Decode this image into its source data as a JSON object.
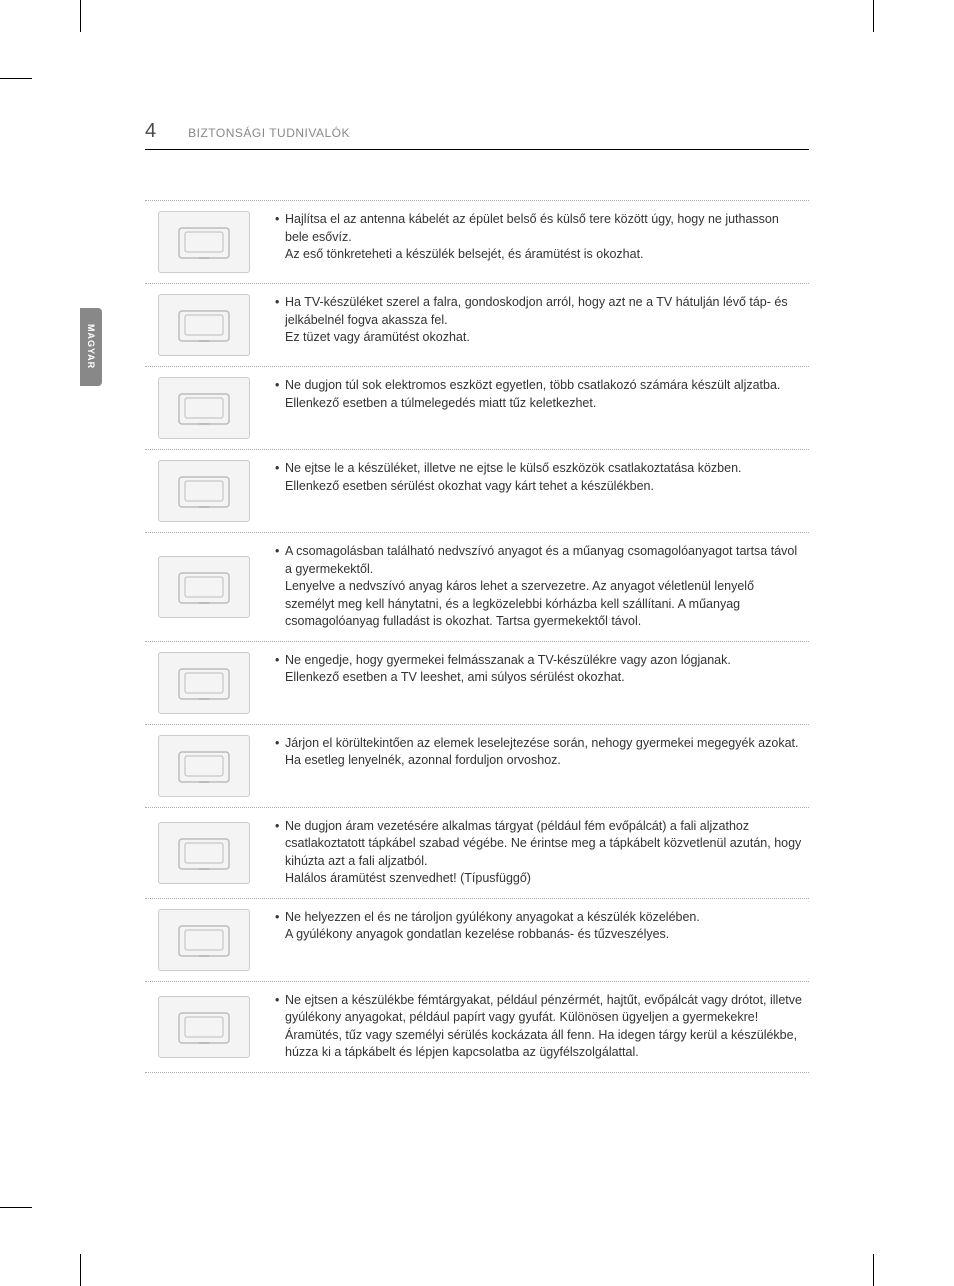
{
  "page_number": "4",
  "section_title": "BIZTONSÁGI TUDNIVALÓK",
  "language_tab": "MAGYAR",
  "colors": {
    "text": "#333333",
    "muted": "#888888",
    "tab_bg": "#888888",
    "tab_text": "#ffffff",
    "border_dotted": "#aaaaaa"
  },
  "rows": [
    {
      "icon": "antenna-rain",
      "main": "Hajlítsa el az antenna kábelét az épület belső és külső tere között úgy, hogy ne juthasson bele esővíz.",
      "sub": "Az eső tönkreteheti a készülék belsejét, és áramütést is okozhat."
    },
    {
      "icon": "wall-mount",
      "main": "Ha TV-készüléket szerel a falra, gondoskodjon arról, hogy azt ne a TV hátulján lévő táp- és jelkábelnél fogva akassza fel.",
      "sub": "Ez tüzet vagy áramütést okozhat."
    },
    {
      "icon": "power-strip",
      "main": "Ne dugjon túl sok elektromos eszközt egyetlen, több csatlakozó számára készült aljzatba.",
      "sub": "Ellenkező esetben a túlmelegedés miatt tűz keletkezhet."
    },
    {
      "icon": "drop-tv",
      "main": "Ne ejtse le a készüléket, illetve ne ejtse le külső eszközök csatlakoztatása közben.",
      "sub": "Ellenkező esetben sérülést okozhat vagy kárt tehet a készülékben."
    },
    {
      "icon": "packaging",
      "main": "A csomagolásban található nedvszívó anyagot és a műanyag csomagolóanyagot tartsa távol a gyermekektől.",
      "sub": "Lenyelve a nedvszívó anyag káros lehet a szervezetre. Az anyagot véletlenül lenyelő személyt meg kell hánytatni, és a legközelebbi kórházba kell szállítani. A műanyag csomagolóanyag fulladást is okozhat. Tartsa gyermekektől távol."
    },
    {
      "icon": "child-climb",
      "main": "Ne engedje, hogy gyermekei felmásszanak a TV-készülékre vagy azon lógjanak.",
      "sub": "Ellenkező esetben a TV leeshet, ami súlyos sérülést okozhat."
    },
    {
      "icon": "batteries",
      "main": "Járjon el körültekintően az elemek leselejtezése során, nehogy gyermekei megegyék azokat.",
      "sub": "Ha esetleg lenyelnék, azonnal forduljon orvoshoz."
    },
    {
      "icon": "metal-socket",
      "main": "Ne dugjon áram vezetésére alkalmas tárgyat (például fém evőpálcát) a fali aljzathoz csatlakoztatott tápkábel szabad végébe. Ne érintse meg a tápkábelt közvetlenül azután, hogy kihúzta azt a fali aljzatból.",
      "sub": "Halálos áramütést szenvedhet!\n(Típusfüggő)"
    },
    {
      "icon": "flammable",
      "main": "Ne helyezzen el és ne tároljon gyúlékony anyagokat a készülék közelében.",
      "sub": "A gyúlékony anyagok gondatlan kezelése robbanás- és tűzveszélyes."
    },
    {
      "icon": "foreign-objects",
      "main": "Ne ejtsen a készülékbe fémtárgyakat, például pénzérmét, hajtűt, evőpálcát vagy drótot, illetve gyúlékony anyagokat, például papírt vagy gyufát. Különösen ügyeljen a gyermekekre!",
      "sub": "Áramütés, tűz vagy személyi sérülés kockázata áll fenn. Ha idegen tárgy kerül a készülékbe, húzza ki a tápkábelt és lépjen kapcsolatba az ügyfélszolgálattal."
    }
  ]
}
